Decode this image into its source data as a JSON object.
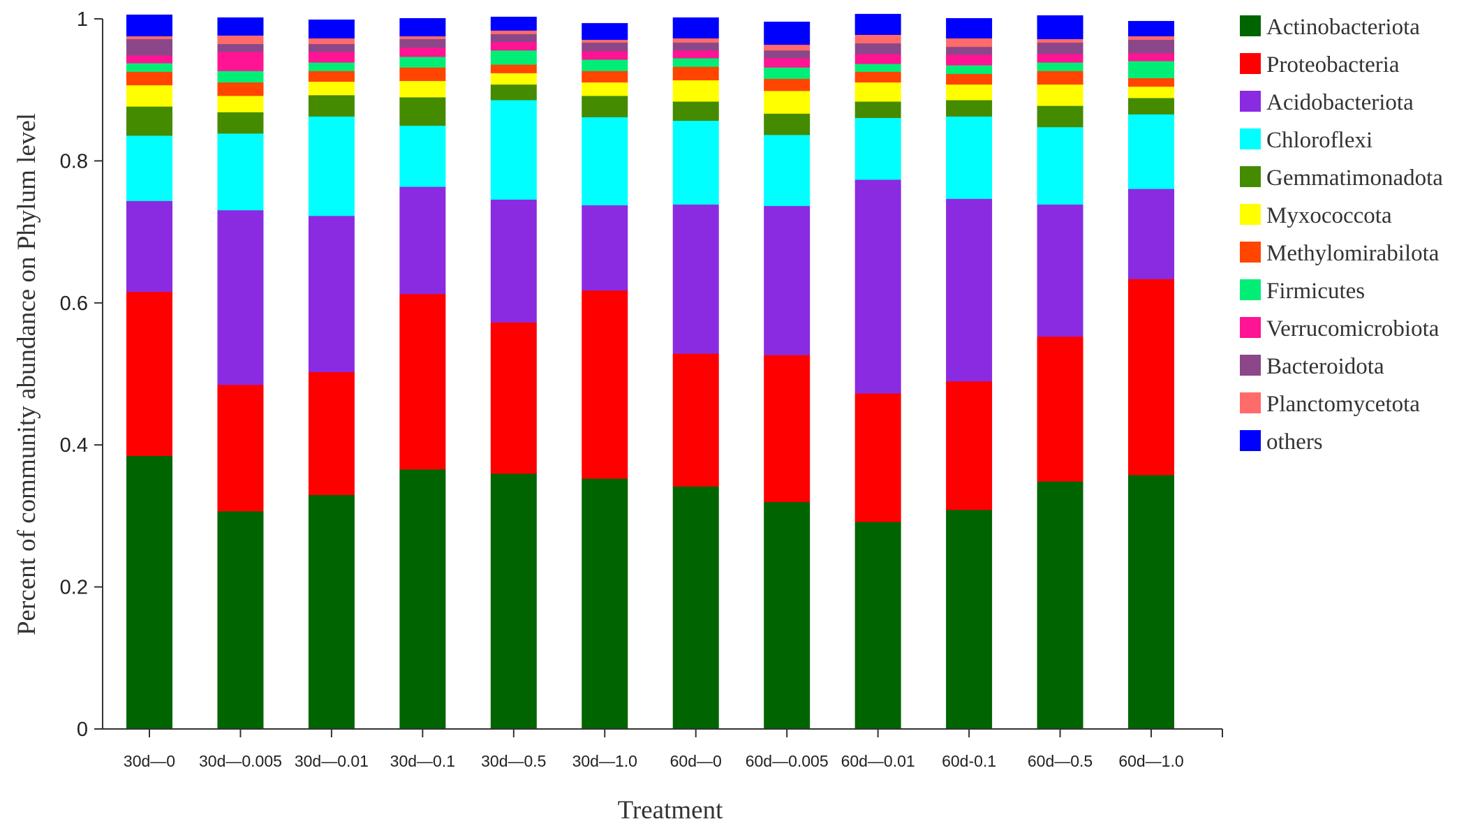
{
  "chart_data": {
    "type": "stacked-bar",
    "title": "",
    "xlabel": "Treatment",
    "ylabel": "Percent of community abundance on Phylum level",
    "ylim": [
      0,
      1
    ],
    "yticks": [
      "0",
      "0.2",
      "0.4",
      "0.6",
      "0.8",
      "1"
    ],
    "legend_position": "right",
    "grid": false,
    "categories": [
      "30d—0",
      "30d—0.005",
      "30d—0.01",
      "30d—0.1",
      "30d—0.5",
      "30d—1.0",
      "60d—0",
      "60d—0.005",
      "60d—0.01",
      "60d-0.1",
      "60d—0.5",
      "60d—1.0"
    ],
    "series": [
      {
        "name": "Actinobacteriota",
        "color": "#006400",
        "values": [
          0.385,
          0.307,
          0.33,
          0.366,
          0.36,
          0.353,
          0.342,
          0.32,
          0.292,
          0.309,
          0.349,
          0.358
        ]
      },
      {
        "name": "Proteobacteria",
        "color": "#ff0000",
        "values": [
          0.231,
          0.178,
          0.173,
          0.247,
          0.213,
          0.265,
          0.187,
          0.207,
          0.181,
          0.181,
          0.204,
          0.276
        ]
      },
      {
        "name": "Acidobacteriota",
        "color": "#8a2be2",
        "values": [
          0.128,
          0.246,
          0.22,
          0.151,
          0.173,
          0.12,
          0.21,
          0.21,
          0.301,
          0.257,
          0.186,
          0.127
        ]
      },
      {
        "name": "Chloroflexi",
        "color": "#00ffff",
        "values": [
          0.092,
          0.108,
          0.14,
          0.086,
          0.14,
          0.124,
          0.118,
          0.1,
          0.087,
          0.116,
          0.109,
          0.105
        ]
      },
      {
        "name": "Gemmatimonadota",
        "color": "#458b00",
        "values": [
          0.041,
          0.03,
          0.03,
          0.04,
          0.022,
          0.03,
          0.027,
          0.03,
          0.023,
          0.023,
          0.03,
          0.023
        ]
      },
      {
        "name": "Myxococcota",
        "color": "#ffff00",
        "values": [
          0.03,
          0.023,
          0.019,
          0.023,
          0.016,
          0.019,
          0.03,
          0.032,
          0.027,
          0.022,
          0.03,
          0.016
        ]
      },
      {
        "name": "Methylomirabilota",
        "color": "#ff4500",
        "values": [
          0.019,
          0.019,
          0.015,
          0.019,
          0.012,
          0.016,
          0.019,
          0.017,
          0.015,
          0.015,
          0.019,
          0.012
        ]
      },
      {
        "name": "Firmicutes",
        "color": "#00ee76",
        "values": [
          0.012,
          0.016,
          0.012,
          0.015,
          0.02,
          0.016,
          0.012,
          0.016,
          0.011,
          0.012,
          0.012,
          0.024
        ]
      },
      {
        "name": "Verrucomicrobiota",
        "color": "#ff1493",
        "values": [
          0.011,
          0.027,
          0.015,
          0.013,
          0.012,
          0.012,
          0.011,
          0.013,
          0.014,
          0.015,
          0.012,
          0.011
        ]
      },
      {
        "name": "Bacteroidota",
        "color": "#8b4789",
        "values": [
          0.023,
          0.011,
          0.011,
          0.012,
          0.011,
          0.012,
          0.011,
          0.011,
          0.015,
          0.011,
          0.016,
          0.019
        ]
      },
      {
        "name": "Planctomycetota",
        "color": "#ff6a6a",
        "values": [
          0.004,
          0.012,
          0.008,
          0.004,
          0.005,
          0.004,
          0.006,
          0.008,
          0.012,
          0.012,
          0.005,
          0.005
        ]
      },
      {
        "name": "others",
        "color": "#0000ff",
        "values": [
          0.03,
          0.025,
          0.026,
          0.025,
          0.019,
          0.023,
          0.029,
          0.032,
          0.029,
          0.028,
          0.033,
          0.021
        ]
      }
    ]
  }
}
